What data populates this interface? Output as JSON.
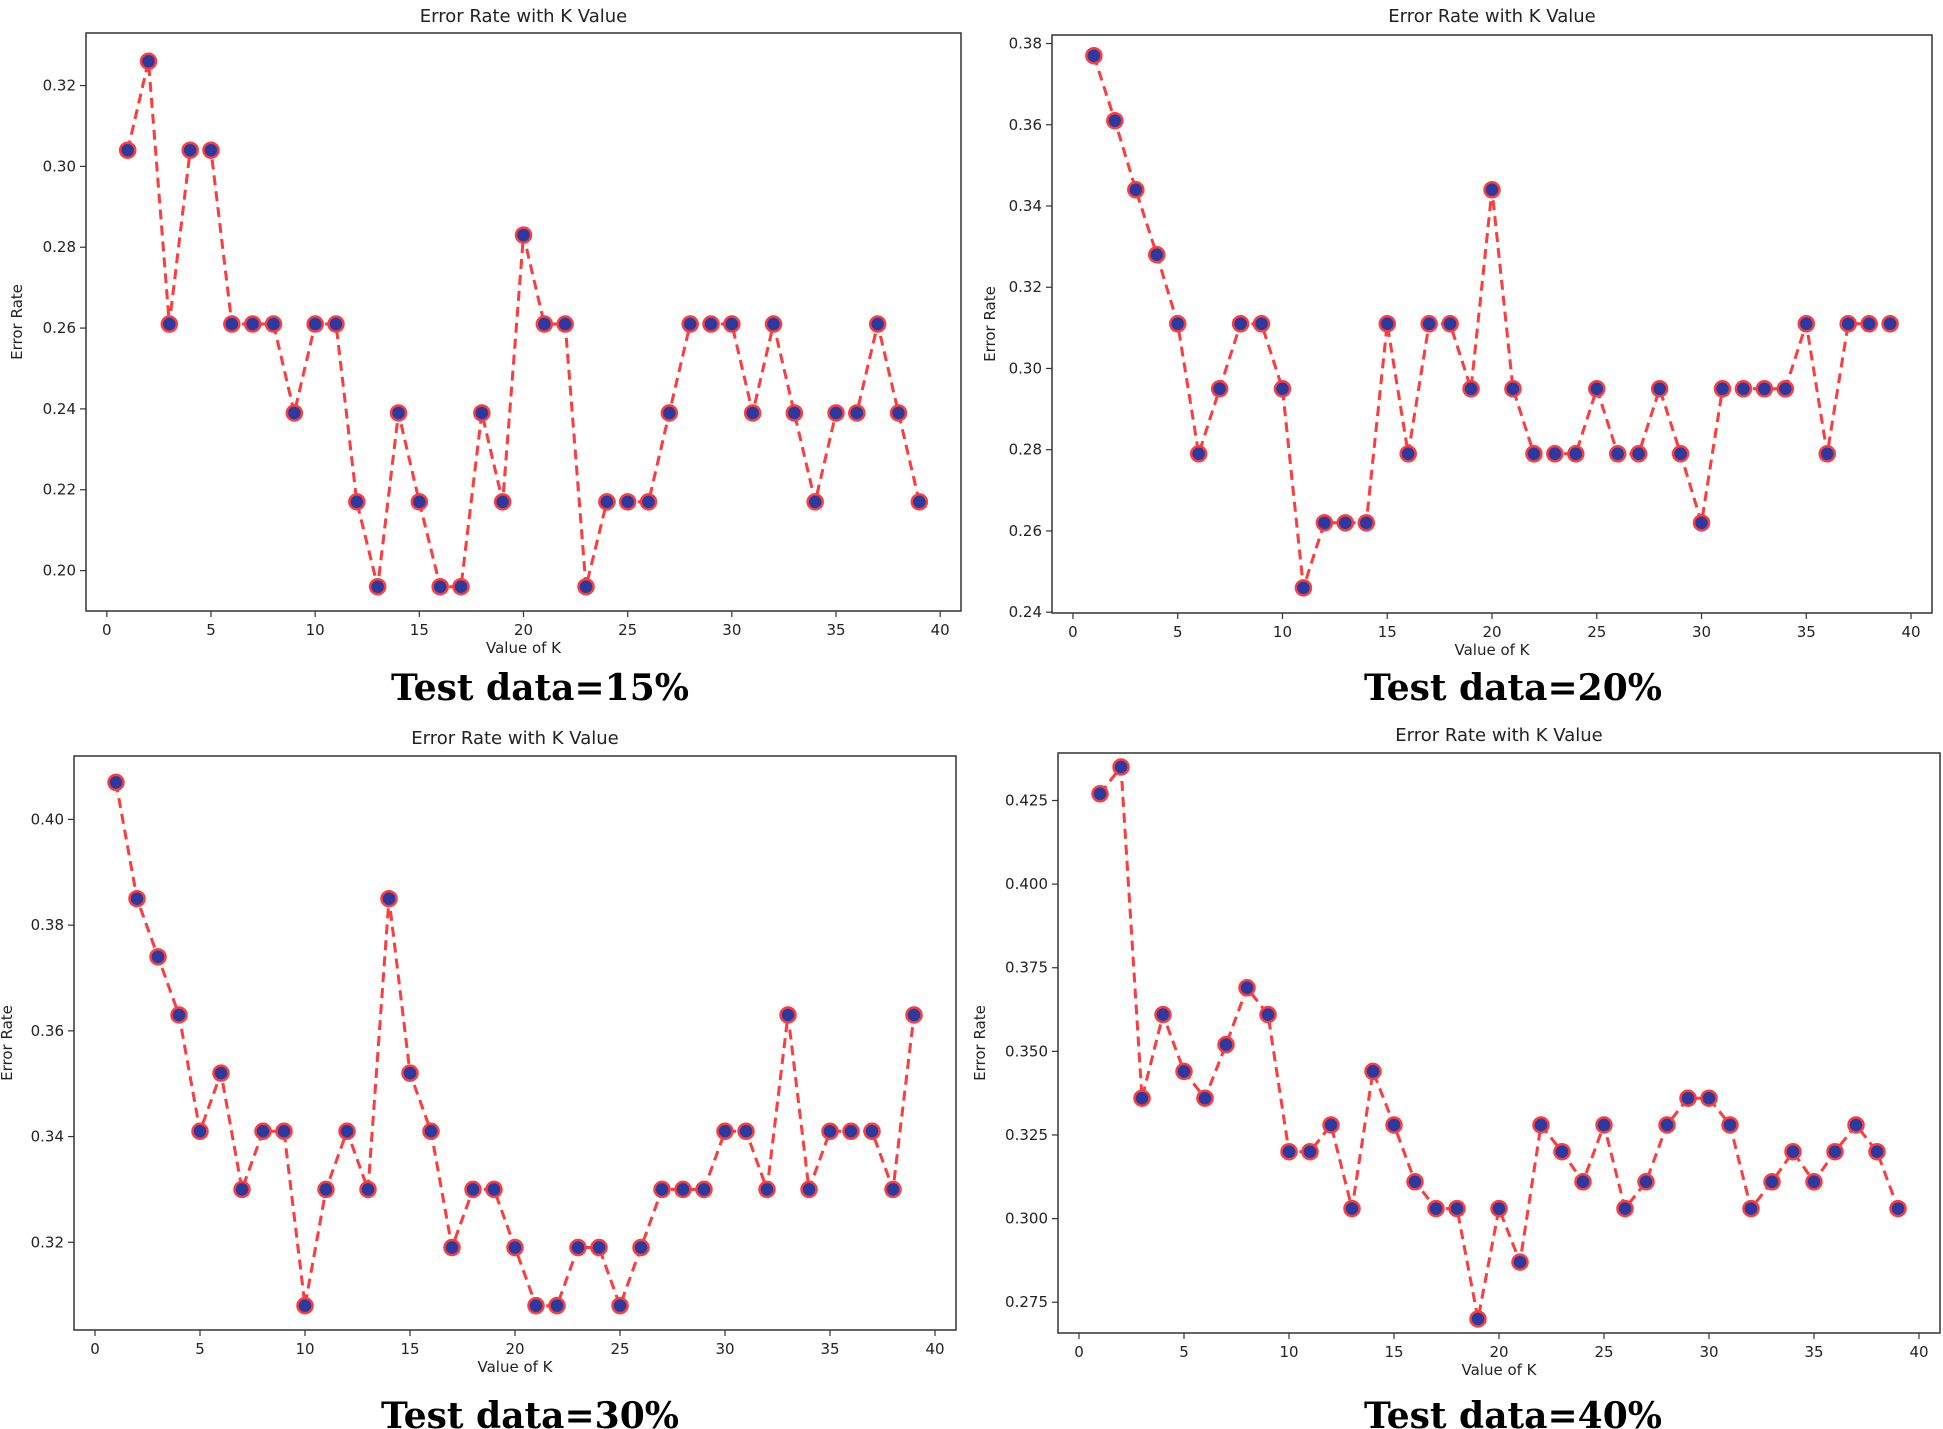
{
  "figure": {
    "style": {
      "line_color": "#ff3b3b",
      "marker_fill": "#2b3aa0",
      "marker_edge": "#ff3b3b"
    }
  },
  "chart_data": [
    {
      "type": "line",
      "title": "Error Rate with K Value",
      "xlabel": "Value of K",
      "ylabel": "Error Rate",
      "caption": "Test data=15%",
      "xlim": [
        -1,
        41
      ],
      "ylim": [
        0.19,
        0.333
      ],
      "xticks": [
        0,
        5,
        10,
        15,
        20,
        25,
        30,
        35,
        40
      ],
      "yticks": [
        0.2,
        0.22,
        0.24,
        0.26,
        0.28,
        0.3,
        0.32
      ],
      "ytick_labels": [
        "0.20",
        "0.22",
        "0.24",
        "0.26",
        "0.28",
        "0.30",
        "0.32"
      ],
      "x": [
        1,
        2,
        3,
        4,
        5,
        6,
        7,
        8,
        9,
        10,
        11,
        12,
        13,
        14,
        15,
        16,
        17,
        18,
        19,
        20,
        21,
        22,
        23,
        24,
        25,
        26,
        27,
        28,
        29,
        30,
        31,
        32,
        33,
        34,
        35,
        36,
        37,
        38,
        39
      ],
      "y": [
        0.304,
        0.326,
        0.261,
        0.304,
        0.304,
        0.261,
        0.261,
        0.261,
        0.239,
        0.261,
        0.261,
        0.217,
        0.196,
        0.239,
        0.217,
        0.196,
        0.196,
        0.239,
        0.217,
        0.283,
        0.261,
        0.261,
        0.196,
        0.217,
        0.217,
        0.217,
        0.239,
        0.261,
        0.261,
        0.261,
        0.239,
        0.261,
        0.239,
        0.217,
        0.239,
        0.239,
        0.261,
        0.239,
        0.217
      ]
    },
    {
      "type": "line",
      "title": "Error Rate with K Value",
      "xlabel": "Value of K",
      "ylabel": "Error Rate",
      "caption": "Test data=20%",
      "xlim": [
        -1,
        41
      ],
      "ylim": [
        0.2398,
        0.3821
      ],
      "xticks": [
        0,
        5,
        10,
        15,
        20,
        25,
        30,
        35,
        40
      ],
      "yticks": [
        0.24,
        0.26,
        0.28,
        0.3,
        0.32,
        0.34,
        0.36,
        0.38
      ],
      "ytick_labels": [
        "0.24",
        "0.26",
        "0.28",
        "0.30",
        "0.32",
        "0.34",
        "0.36",
        "0.38"
      ],
      "x": [
        1,
        2,
        3,
        4,
        5,
        6,
        7,
        8,
        9,
        10,
        11,
        12,
        13,
        14,
        15,
        16,
        17,
        18,
        19,
        20,
        21,
        22,
        23,
        24,
        25,
        26,
        27,
        28,
        29,
        30,
        31,
        32,
        33,
        34,
        35,
        36,
        37,
        38,
        39
      ],
      "y": [
        0.377,
        0.361,
        0.344,
        0.328,
        0.311,
        0.279,
        0.295,
        0.311,
        0.311,
        0.295,
        0.246,
        0.262,
        0.262,
        0.262,
        0.311,
        0.279,
        0.311,
        0.311,
        0.295,
        0.344,
        0.295,
        0.279,
        0.279,
        0.279,
        0.295,
        0.279,
        0.279,
        0.295,
        0.279,
        0.262,
        0.295,
        0.295,
        0.295,
        0.295,
        0.311,
        0.279,
        0.311,
        0.311,
        0.311
      ]
    },
    {
      "type": "line",
      "title": "Error Rate with K Value",
      "xlabel": "Value of K",
      "ylabel": "Error Rate",
      "caption": "Test data=30%",
      "xlim": [
        -1,
        41
      ],
      "ylim": [
        0.3034,
        0.412
      ],
      "xticks": [
        0,
        5,
        10,
        15,
        20,
        25,
        30,
        35,
        40
      ],
      "yticks": [
        0.32,
        0.34,
        0.36,
        0.38,
        0.4
      ],
      "ytick_labels": [
        "0.32",
        "0.34",
        "0.36",
        "0.38",
        "0.40"
      ],
      "x": [
        1,
        2,
        3,
        4,
        5,
        6,
        7,
        8,
        9,
        10,
        11,
        12,
        13,
        14,
        15,
        16,
        17,
        18,
        19,
        20,
        21,
        22,
        23,
        24,
        25,
        26,
        27,
        28,
        29,
        30,
        31,
        32,
        33,
        34,
        35,
        36,
        37,
        38,
        39
      ],
      "y": [
        0.407,
        0.385,
        0.374,
        0.363,
        0.341,
        0.352,
        0.33,
        0.341,
        0.341,
        0.308,
        0.33,
        0.341,
        0.33,
        0.385,
        0.352,
        0.341,
        0.319,
        0.33,
        0.33,
        0.319,
        0.308,
        0.308,
        0.319,
        0.319,
        0.308,
        0.319,
        0.33,
        0.33,
        0.33,
        0.341,
        0.341,
        0.33,
        0.363,
        0.33,
        0.341,
        0.341,
        0.341,
        0.33,
        0.363
      ]
    },
    {
      "type": "line",
      "title": "Error Rate with K Value",
      "xlabel": "Value of K",
      "ylabel": "Error Rate",
      "caption": "Test data=40%",
      "xlim": [
        -1,
        41
      ],
      "ylim": [
        0.2658,
        0.4392
      ],
      "xticks": [
        0,
        5,
        10,
        15,
        20,
        25,
        30,
        35,
        40
      ],
      "yticks": [
        0.275,
        0.3,
        0.325,
        0.35,
        0.375,
        0.4,
        0.425
      ],
      "ytick_labels": [
        "0.275",
        "0.300",
        "0.325",
        "0.350",
        "0.375",
        "0.400",
        "0.425"
      ],
      "x": [
        1,
        2,
        3,
        4,
        5,
        6,
        7,
        8,
        9,
        10,
        11,
        12,
        13,
        14,
        15,
        16,
        17,
        18,
        19,
        20,
        21,
        22,
        23,
        24,
        25,
        26,
        27,
        28,
        29,
        30,
        31,
        32,
        33,
        34,
        35,
        36,
        37,
        38,
        39
      ],
      "y": [
        0.427,
        0.435,
        0.336,
        0.361,
        0.344,
        0.336,
        0.352,
        0.369,
        0.361,
        0.32,
        0.32,
        0.328,
        0.303,
        0.344,
        0.328,
        0.311,
        0.303,
        0.303,
        0.27,
        0.303,
        0.287,
        0.328,
        0.32,
        0.311,
        0.328,
        0.303,
        0.311,
        0.328,
        0.336,
        0.336,
        0.328,
        0.303,
        0.311,
        0.32,
        0.311,
        0.32,
        0.328,
        0.32,
        0.303
      ]
    }
  ]
}
